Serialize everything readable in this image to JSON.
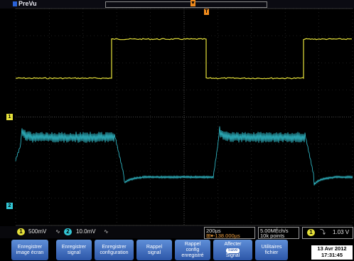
{
  "header": {
    "mode_label": "PreVu",
    "trigger_pos_glyph": "▼",
    "trigger_marker": "T"
  },
  "channels": {
    "ch1": {
      "label": "1",
      "scale": "500mV",
      "coupling_icon": "bandwidth-icon",
      "color": "#e6e13a"
    },
    "ch2": {
      "label": "2",
      "scale": "10.0mV",
      "coupling_icon": "bandwidth-icon",
      "color": "#33c7d6"
    }
  },
  "timebase": {
    "scale": "200µs",
    "position": "-138.000µs"
  },
  "acquisition": {
    "sample_rate": "5.00MÉch/s",
    "record_length": "10k points"
  },
  "trigger": {
    "channel": "1",
    "slope_glyph": "⤵",
    "level": "1.03 V"
  },
  "softkeys": [
    {
      "line1": "Enregistrer",
      "line2": "image écran"
    },
    {
      "line1": "Enregistrer",
      "line2": "signal"
    },
    {
      "line1": "Enregistrer",
      "line2": "configuration"
    },
    {
      "line1": "Rappel",
      "line2": "signal"
    },
    {
      "line1": "Rappel",
      "line2": "config",
      "line3": "enregistré"
    },
    {
      "line1": "Affecter",
      "line2": "Save",
      "line3": "Signal"
    },
    {
      "line1": "Utilitaires",
      "line2": "fichier"
    }
  ],
  "datetime": {
    "date": "13 Avr 2012",
    "time": "17:31:45"
  },
  "colors": {
    "ch1": "#e6e13a",
    "ch2": "#33c7d6",
    "softkey": "#3f6cc0",
    "trigger": "#f08a1c"
  }
}
